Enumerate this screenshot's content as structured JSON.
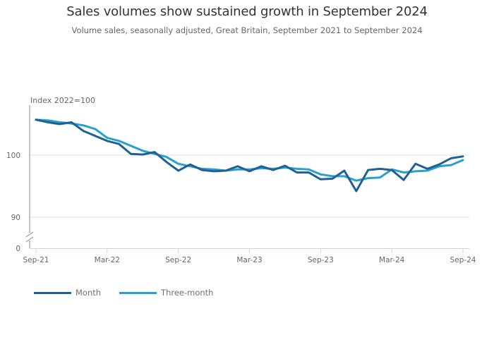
{
  "header": {
    "title": "Sales volumes show sustained growth in September 2024",
    "subtitle": "Volume sales, seasonally adjusted, Great Britain, September 2021 to September 2024"
  },
  "chart_data": {
    "type": "line",
    "title": "Sales volumes show sustained growth in September 2024",
    "subtitle": "Volume sales, seasonally adjusted, Great Britain, September 2021 to September 2024",
    "ylabel": "Index 2022=100",
    "xlabel": "",
    "ylim": [
      88,
      107
    ],
    "y_axis_break": true,
    "yticks": [
      {
        "value": 100,
        "label": "100"
      },
      {
        "value": 90,
        "label": "90"
      },
      {
        "value": 0,
        "label": "0"
      }
    ],
    "xticks": [
      {
        "index": 0,
        "label": "Sep-21"
      },
      {
        "index": 6,
        "label": "Mar-22"
      },
      {
        "index": 12,
        "label": "Sep-22"
      },
      {
        "index": 18,
        "label": "Mar-23"
      },
      {
        "index": 24,
        "label": "Sep-23"
      },
      {
        "index": 30,
        "label": "Mar-24"
      },
      {
        "index": 36,
        "label": "Sep-24"
      }
    ],
    "x": [
      "Sep-21",
      "Oct-21",
      "Nov-21",
      "Dec-21",
      "Jan-22",
      "Feb-22",
      "Mar-22",
      "Apr-22",
      "May-22",
      "Jun-22",
      "Jul-22",
      "Aug-22",
      "Sep-22",
      "Oct-22",
      "Nov-22",
      "Dec-22",
      "Jan-23",
      "Feb-23",
      "Mar-23",
      "Apr-23",
      "May-23",
      "Jun-23",
      "Jul-23",
      "Aug-23",
      "Sep-23",
      "Oct-23",
      "Nov-23",
      "Dec-23",
      "Jan-24",
      "Feb-24",
      "Mar-24",
      "Apr-24",
      "May-24",
      "Jun-24",
      "Jul-24",
      "Aug-24",
      "Sep-24"
    ],
    "grid": true,
    "legend_position": "bottom-left",
    "series": [
      {
        "name": "Month",
        "color": "#206095",
        "values": [
          105.7,
          105.3,
          105.0,
          105.3,
          103.9,
          103.1,
          102.3,
          101.8,
          100.2,
          100.1,
          100.5,
          98.9,
          97.5,
          98.5,
          97.6,
          97.4,
          97.5,
          98.2,
          97.4,
          98.2,
          97.6,
          98.3,
          97.2,
          97.2,
          96.1,
          96.2,
          97.5,
          94.2,
          97.6,
          97.8,
          97.6,
          96.0,
          98.6,
          97.8,
          98.5,
          99.5,
          99.8
        ]
      },
      {
        "name": "Three-month",
        "color": "#27a0cc",
        "values": [
          105.7,
          105.6,
          105.3,
          105.1,
          104.8,
          104.2,
          102.8,
          102.3,
          101.5,
          100.7,
          100.2,
          99.7,
          98.6,
          98.2,
          97.8,
          97.7,
          97.5,
          97.7,
          97.7,
          97.9,
          97.8,
          98.0,
          97.8,
          97.7,
          96.9,
          96.6,
          96.6,
          95.9,
          96.3,
          96.4,
          97.7,
          97.2,
          97.4,
          97.5,
          98.2,
          98.4,
          99.2
        ]
      }
    ]
  },
  "legend": {
    "items": [
      {
        "label": "Month",
        "color": "#206095"
      },
      {
        "label": "Three-month",
        "color": "#27a0cc"
      }
    ]
  },
  "colors": {
    "gridline": "#e0e0e0",
    "axis": "#888888",
    "x_axis": "#c8d4e6"
  }
}
